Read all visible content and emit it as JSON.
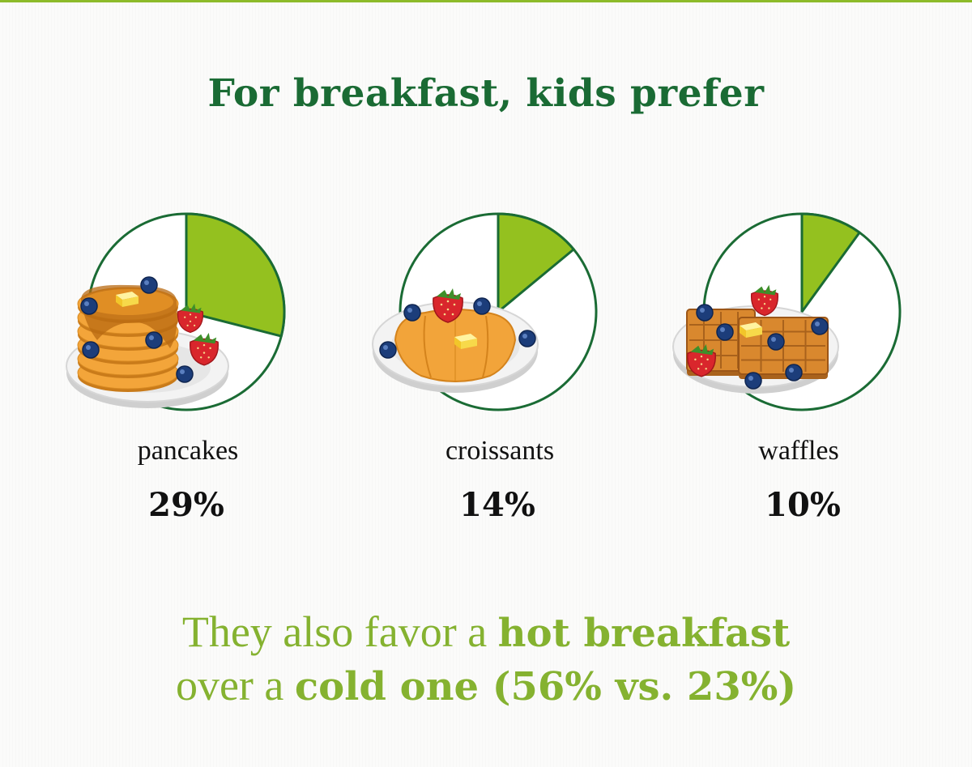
{
  "title": "For breakfast, kids prefer",
  "colors": {
    "title": "#1a6b34",
    "wedge": "#94c11f",
    "ring": "#1a6b34",
    "note": "#85b230"
  },
  "chart_data": {
    "type": "pie",
    "title": "For breakfast, kids prefer",
    "categories": [
      "pancakes",
      "croissants",
      "waffles"
    ],
    "values": [
      29,
      14,
      10
    ],
    "labels": [
      "29%",
      "14%",
      "10%"
    ],
    "icons": [
      "pancakes-plate-icon",
      "croissant-plate-icon",
      "waffles-plate-icon"
    ]
  },
  "note": {
    "line1_a": "They also favor a ",
    "line1_b": "hot breakfast",
    "line2_a": "over a ",
    "line2_b": "cold one (56% vs. 23%)"
  }
}
